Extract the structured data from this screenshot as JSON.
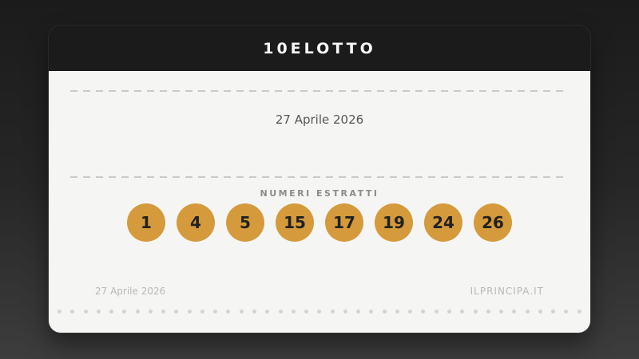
{
  "card": {
    "title": "10ELOTTO",
    "draw_date": "27 Aprile 2026",
    "numbers_label": "NUMERI ESTRATTI",
    "numbers": [
      1,
      4,
      5,
      15,
      17,
      19,
      24,
      26
    ],
    "footer": {
      "date": "27 Aprile 2026",
      "site": "ILPRINCIPA.IT"
    },
    "colors": {
      "ball": "#d59a3b",
      "ball_text": "#212121",
      "header_bg": "#1b1b1b",
      "body_bg": "#f5f5f4"
    }
  }
}
